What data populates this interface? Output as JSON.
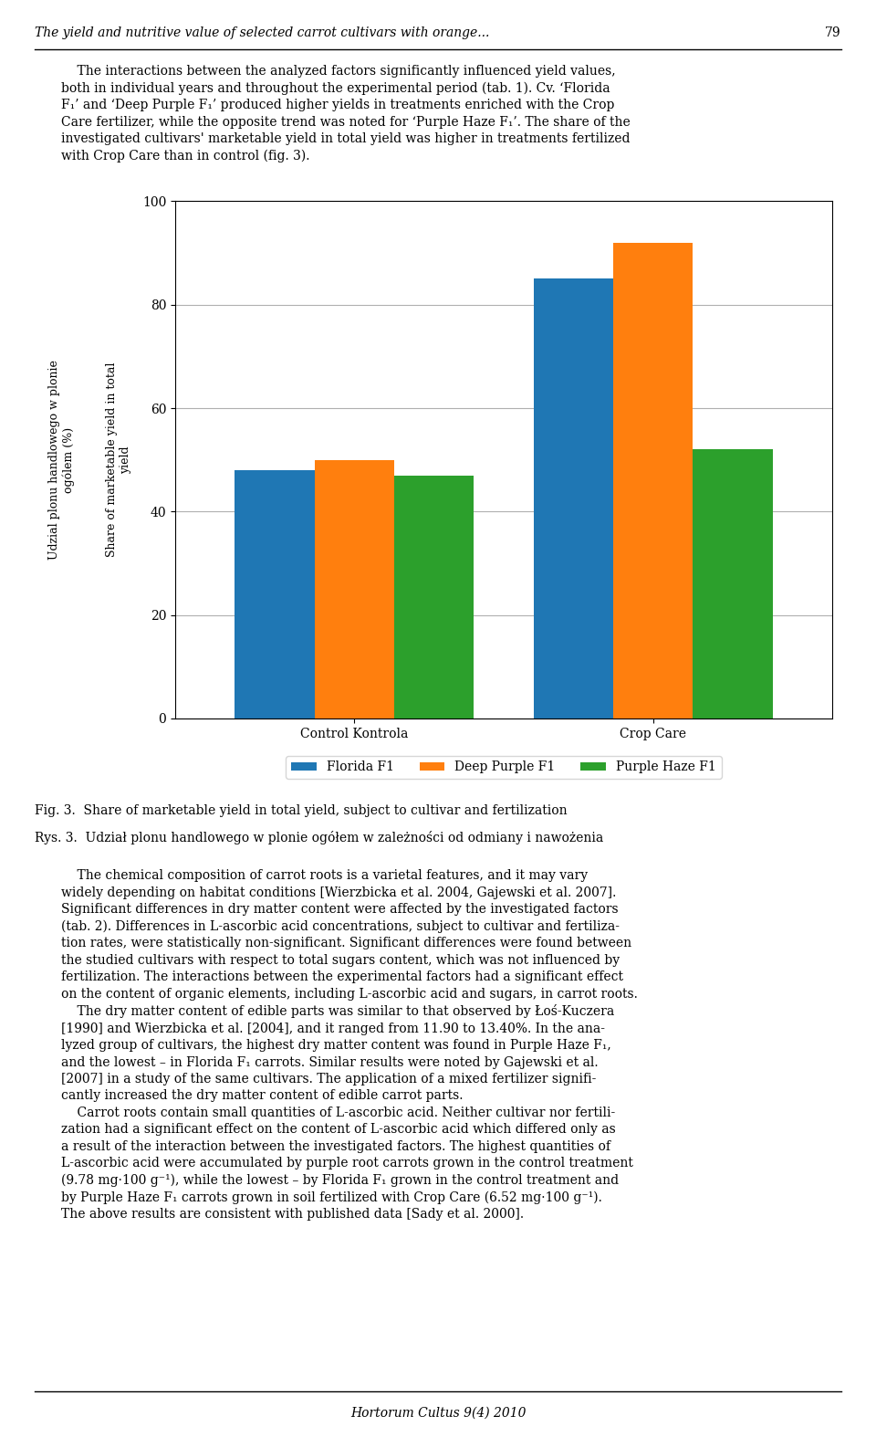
{
  "chart_data": {
    "type": "bar",
    "title": "Fig. 3.  Share of marketable yield in total yield, subject to cultivar and fertilization",
    "subtitle": "Rys. 3.  Udział plonu handlowego w plonie ogółem w zależności od odmiany i nawożenia",
    "ylabel": [
      "Share of marketable yield in total\nyield",
      "Udzial plonu handlowego w plonie\nogólem (%)"
    ],
    "categories": [
      "Control Kontrola",
      "Crop Care"
    ],
    "series": [
      {
        "name": "Florida F1",
        "values": [
          48,
          85
        ]
      },
      {
        "name": "Deep Purple F1",
        "values": [
          50,
          92
        ]
      },
      {
        "name": "Purple Haze F1",
        "values": [
          47,
          52
        ]
      }
    ],
    "ylim": [
      0,
      100
    ],
    "yticks": [
      0,
      20,
      40,
      60,
      80,
      100
    ],
    "grid": true,
    "legend": "upper center",
    "annotations": [
      "The yield and nutritive value of selected carrot cultivars with orange...",
      "79",
      "    The interactions between the analyzed factors significantly influenced yield values,\nboth in individual years and throughout the experimental period (tab. 1). Cv. ‘Florida\nF₁’ and ‘Deep Purple F₁’ produced higher yields in treatments enriched with the Crop\nCare fertilizer, while the opposite trend was noted for ‘Purple Haze F₁’. The share of the\ninvestigated cultivars' marketable yield in total yield was higher in treatments fertilized\nwith Crop Care than in control (fig. 3).",
      "    The chemical composition of carrot roots is a varietal features, and it may vary\nwidely depending on habitat conditions [Wierzbicka et al. 2004, Gajewski et al. 2007].\nSignificant differences in dry matter content were affected by the investigated factors\n(tab. 2). Differences in L-ascorbic acid concentrations, subject to cultivar and fertiliza-\ntion rates, were statistically non-significant. Significant differences were found between\nthe studied cultivars with respect to total sugars content, which was not influenced by\nfertilization. The interactions between the experimental factors had a significant effect\non the content of organic elements, including L-ascorbic acid and sugars, in carrot roots.\n    The dry matter content of edible parts was similar to that observed by Łoś-Kuczera\n[1990] and Wierzbicka et al. [2004], and it ranged from 11.90 to 13.40%. In the ana-\nlyzed group of cultivars, the highest dry matter content was found in Purple Haze F₁,\nand the lowest – in Florida F₁ carrots. Similar results were noted by Gajewski et al.\n[2007] in a study of the same cultivars. The application of a mixed fertilizer signifi-\ncantly increased the dry matter content of edible carrot parts.\n    Carrot roots contain small quantities of L-ascorbic acid. Neither cultivar nor fertili-\nzation had a significant effect on the content of L-ascorbic acid which differed only as\na result of the interaction between the investigated factors. The highest quantities of\nL-ascorbic acid were accumulated by purple root carrots grown in the control treatment\n(9.78 mg·100 g⁻¹), while the lowest – by Florida F₁ grown in the control treatment and\nby Purple Haze F₁ carrots grown in soil fertilized with Crop Care (6.52 mg·100 g⁻¹).\nThe above results are consistent with published data [Sady et al. 2000].",
      "Hortorum Cultus 9(4) 2010"
    ]
  }
}
